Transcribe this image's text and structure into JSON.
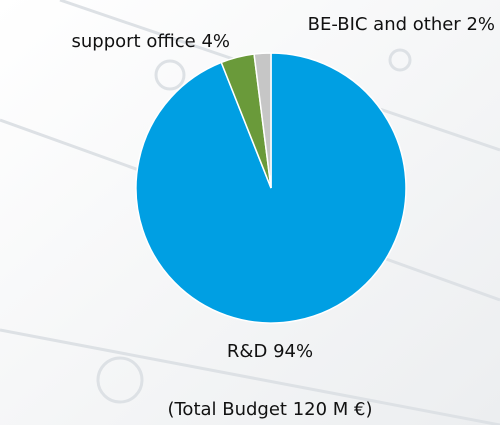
{
  "chart_data": {
    "type": "pie",
    "categories": [
      "R&D",
      "support office",
      "BE-BIC and other"
    ],
    "values": [
      94,
      4,
      2
    ],
    "value_labels": [
      "94%",
      "4%",
      "2%"
    ],
    "colors": [
      "#009fe3",
      "#6a9a3a",
      "#c6c6c6"
    ],
    "subtitle": "(Total Budget 120 M €)"
  }
}
